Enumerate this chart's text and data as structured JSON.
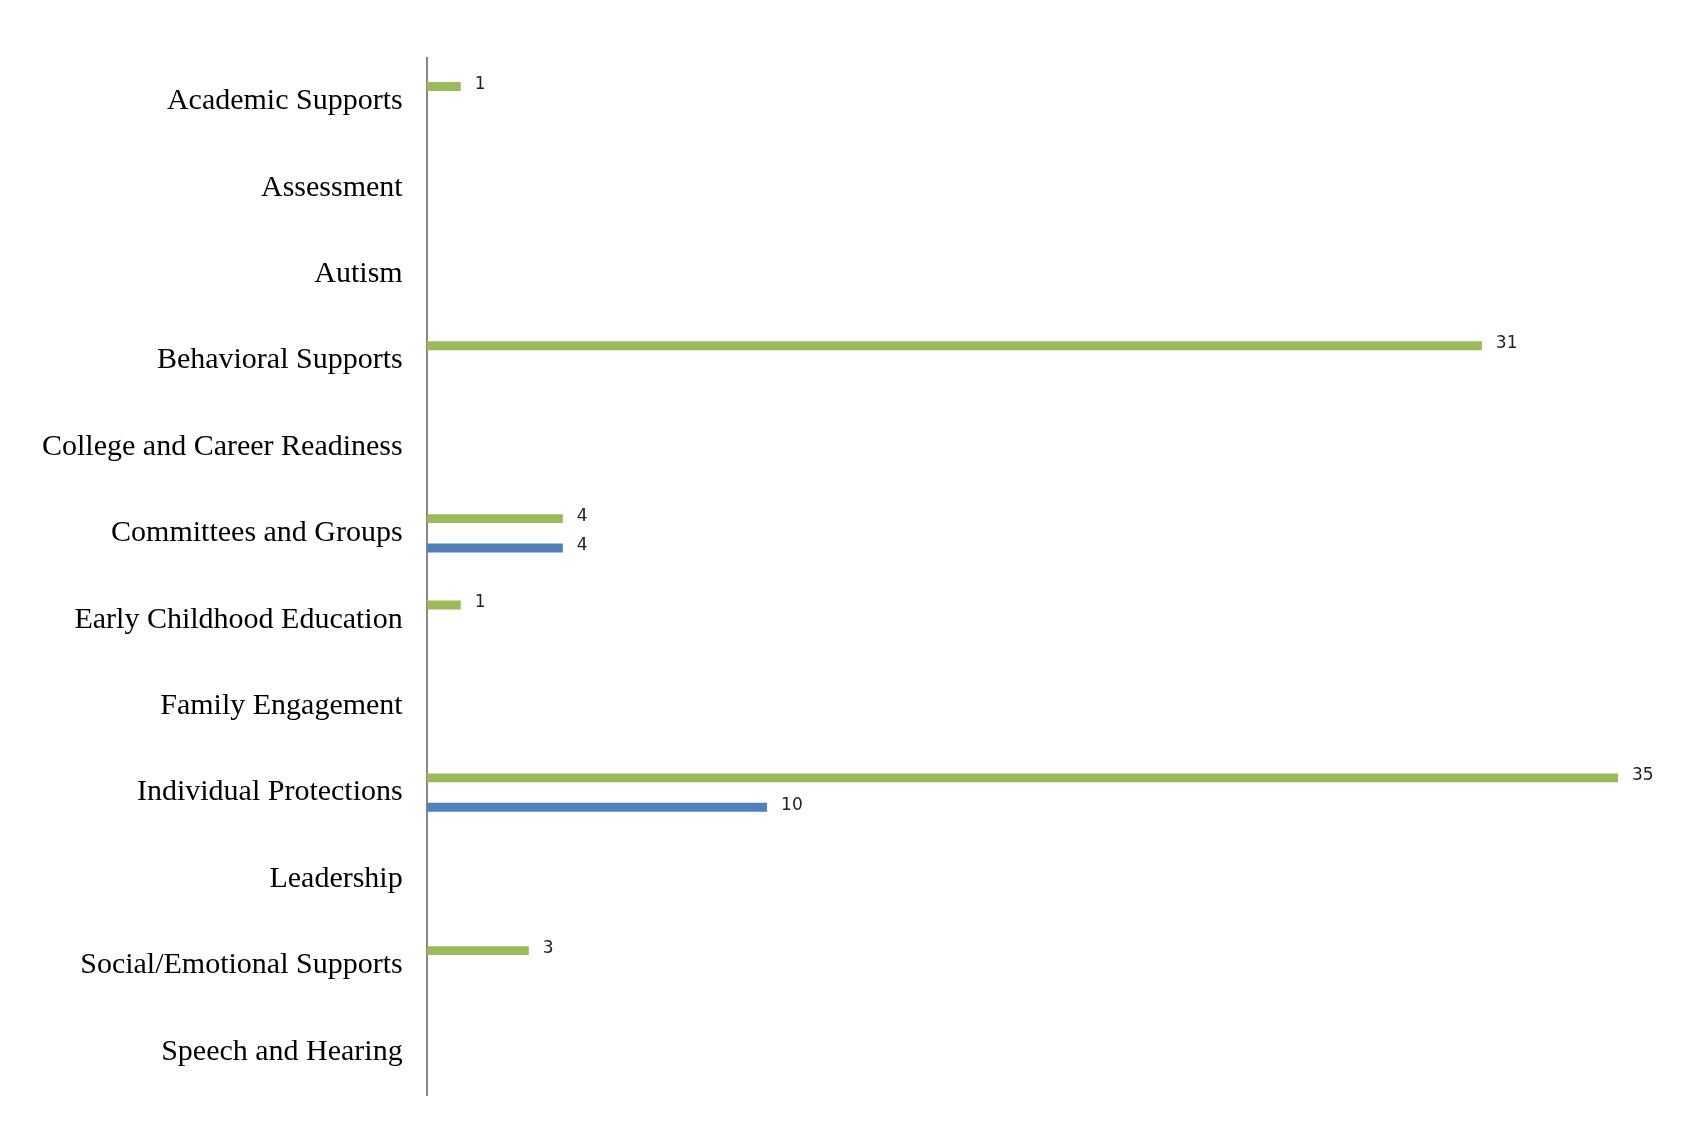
{
  "chart_data": {
    "type": "bar",
    "orientation": "horizontal",
    "data_labels": true,
    "categories": [
      "Academic Supports",
      "Assessment",
      "Autism",
      "Behavioral Supports",
      "College and Career Readiness",
      "Committees and Groups",
      "Early Childhood Education",
      "Family Engagement",
      "Individual Protections",
      "Leadership",
      "Social/Emotional Supports",
      "Speech and Hearing"
    ],
    "series": [
      {
        "color": "#9bbb59",
        "values": [
          1,
          null,
          null,
          31,
          null,
          4,
          1,
          null,
          35,
          null,
          3,
          null
        ]
      },
      {
        "color": "#4f81bd",
        "values": [
          null,
          null,
          null,
          null,
          null,
          4,
          null,
          null,
          10,
          null,
          null,
          null
        ]
      }
    ]
  }
}
